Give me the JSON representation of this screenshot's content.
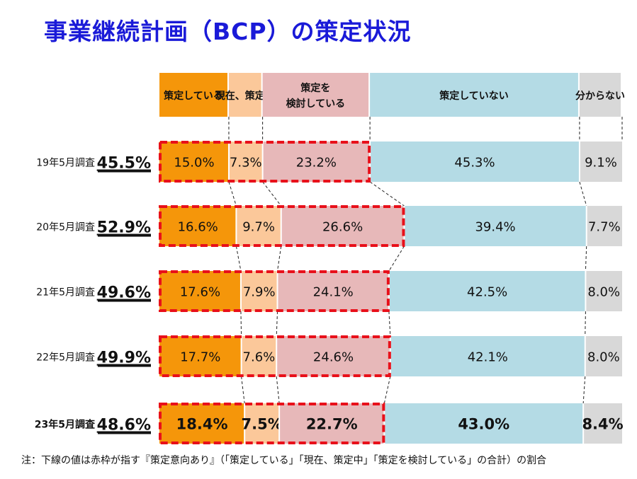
{
  "title": "事業継続計画（BCP）の策定状況",
  "note": "注：下線の値は赤枠が指す『策定意向あり』（「策定している」「現在、策定中」「策定を検討している」の合計）の割合",
  "colors": {
    "title": "#1a1ad8",
    "highlight_frame": "#e8101a",
    "connector": "#222222"
  },
  "chart_data": {
    "type": "bar",
    "stacked": true,
    "orientation": "horizontal",
    "normalized": true,
    "legend_position": "top",
    "categories": [
      "19年5月調査",
      "20年5月調査",
      "21年5月調査",
      "22年5月調査",
      "23年5月調査"
    ],
    "category_emphasis": [
      false,
      false,
      false,
      false,
      true
    ],
    "totals_label": [
      "45.5%",
      "52.9%",
      "49.6%",
      "49.9%",
      "48.6%"
    ],
    "series": [
      {
        "name": "策定している",
        "color": "#f5960a",
        "values": [
          15.0,
          16.6,
          17.6,
          17.7,
          18.4
        ],
        "labels": [
          "15.0%",
          "16.6%",
          "17.6%",
          "17.7%",
          "18.4%"
        ]
      },
      {
        "name": "現在、策定中",
        "color": "#fbc89a",
        "values": [
          7.3,
          9.7,
          7.9,
          7.6,
          7.5
        ],
        "labels": [
          "7.3%",
          "9.7%",
          "7.9%",
          "7.6%",
          "7.5%"
        ]
      },
      {
        "name": "策定を\n検討している",
        "color": "#e7b8b9",
        "values": [
          23.2,
          26.6,
          24.1,
          24.6,
          22.7
        ],
        "labels": [
          "23.2%",
          "26.6%",
          "24.1%",
          "24.6%",
          "22.7%"
        ]
      },
      {
        "name": "策定していない",
        "color": "#b4dbe5",
        "values": [
          45.3,
          39.4,
          42.5,
          42.1,
          43.0
        ],
        "labels": [
          "45.3%",
          "39.4%",
          "42.5%",
          "42.1%",
          "43.0%"
        ]
      },
      {
        "name": "分からない",
        "color": "#d8d8d8",
        "values": [
          9.1,
          7.7,
          8.0,
          8.0,
          8.4
        ],
        "labels": [
          "9.1%",
          "7.7%",
          "8.0%",
          "8.0%",
          "8.4%"
        ]
      }
    ],
    "highlight_series_count": 3
  }
}
